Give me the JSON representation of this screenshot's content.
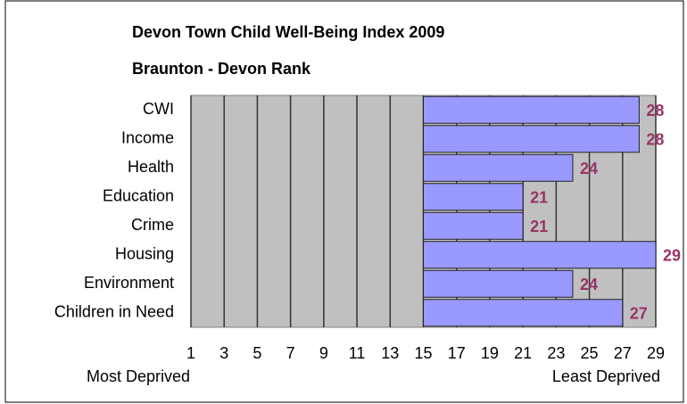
{
  "chart_data": {
    "type": "hbar",
    "title": "Devon Town Child Well-Being Index 2009",
    "subtitle": "Braunton - Devon Rank",
    "categories": [
      "CWI",
      "Income",
      "Health",
      "Education",
      "Crime",
      "Housing",
      "Environment",
      "Children in Need"
    ],
    "values": [
      28,
      28,
      24,
      21,
      21,
      29,
      24,
      27
    ],
    "color": "#9999ff",
    "label_color": "#993366",
    "bar_base": 15,
    "xlim": [
      1,
      29
    ],
    "xticks": [
      1,
      3,
      5,
      7,
      9,
      11,
      13,
      15,
      17,
      19,
      21,
      23,
      25,
      27,
      29
    ],
    "x_min_label": "Most Deprived",
    "x_max_label": "Least Deprived",
    "grid": true
  }
}
